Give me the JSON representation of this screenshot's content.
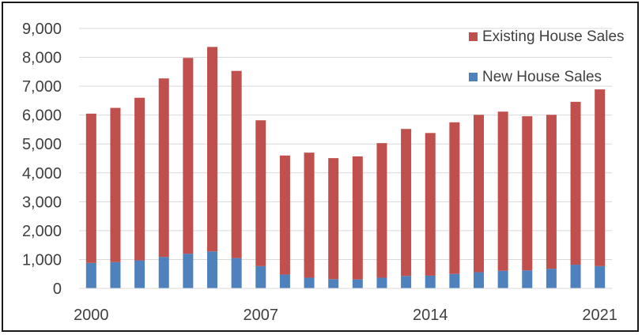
{
  "chart_data": {
    "type": "bar",
    "stacked": true,
    "title": "",
    "xlabel": "",
    "ylabel": "",
    "ylim": [
      0,
      9000
    ],
    "yticks": [
      0,
      1000,
      2000,
      3000,
      4000,
      5000,
      6000,
      7000,
      8000,
      9000
    ],
    "ytick_labels": [
      "0",
      "1,000",
      "2,000",
      "3,000",
      "4,000",
      "5,000",
      "6,000",
      "7,000",
      "8,000",
      "9,000"
    ],
    "categories": [
      2000,
      2001,
      2002,
      2003,
      2004,
      2005,
      2006,
      2007,
      2008,
      2009,
      2010,
      2011,
      2012,
      2013,
      2014,
      2015,
      2016,
      2017,
      2018,
      2019,
      2020,
      2021
    ],
    "xtick_labels": [
      "2000",
      "2007",
      "2014",
      "2021"
    ],
    "xtick_categories": [
      2000,
      2007,
      2014,
      2021
    ],
    "grid": "horizontal",
    "legend_position": "top-right",
    "series": [
      {
        "name": "New House Sales",
        "color": "#4f81bd",
        "values": [
          880,
          910,
          970,
          1090,
          1200,
          1280,
          1050,
          770,
          480,
          370,
          320,
          310,
          370,
          430,
          440,
          500,
          560,
          610,
          620,
          680,
          820,
          770
        ]
      },
      {
        "name": "Existing House Sales",
        "color": "#c0504d",
        "values": [
          5170,
          5340,
          5630,
          6180,
          6780,
          7080,
          6480,
          5050,
          4120,
          4330,
          4190,
          4260,
          4660,
          5090,
          4940,
          5250,
          5450,
          5510,
          5340,
          5330,
          5640,
          6120
        ]
      }
    ],
    "legend_order": [
      "Existing House Sales",
      "New House Sales"
    ]
  }
}
